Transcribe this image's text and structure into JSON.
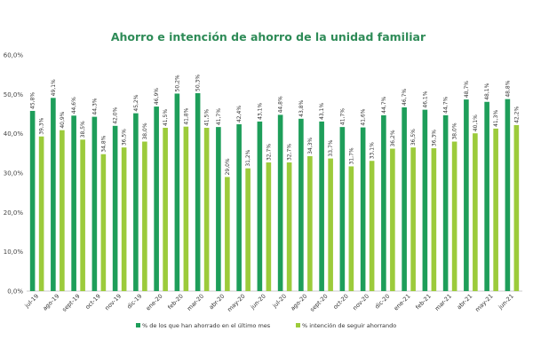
{
  "chart_data": {
    "type": "bar",
    "title": "Ahorro e intención de ahorro de la unidad familiar",
    "xlabel": "",
    "ylabel": "",
    "ylim": [
      0,
      60
    ],
    "yticks": [
      "0,0%",
      "10,0%",
      "20,0%",
      "30,0%",
      "40,0%",
      "50,0%",
      "60,0%"
    ],
    "legend_position": "bottom",
    "grid": false,
    "categories": [
      "jul-19",
      "ago-19",
      "sept-19",
      "oct-19",
      "nov-19",
      "dic-19",
      "ene-20",
      "feb-20",
      "mar-20",
      "abr-20",
      "may-20",
      "jun-20",
      "jul-20",
      "ago-20",
      "sept-20",
      "oct-20",
      "nov-20",
      "dic-20",
      "ene-21",
      "feb-21",
      "mar-21",
      "abr-21",
      "may-21",
      "jun-21"
    ],
    "series": [
      {
        "name": "% de los que han ahorrado en el último mes",
        "color": "#1e9e5a",
        "values": [
          45.8,
          49.1,
          44.6,
          44.3,
          42.0,
          45.2,
          46.9,
          50.2,
          50.3,
          41.7,
          42.4,
          43.1,
          44.8,
          43.8,
          43.1,
          41.7,
          41.6,
          44.7,
          46.7,
          46.1,
          44.7,
          48.7,
          48.1,
          48.8
        ],
        "labels": [
          "45,8%",
          "49,1%",
          "44,6%",
          "44,3%",
          "42,0%",
          "45,2%",
          "46,9%",
          "50,2%",
          "50,3%",
          "41,7%",
          "42,4%",
          "43,1%",
          "44,8%",
          "43,8%",
          "43,1%",
          "41,7%",
          "41,6%",
          "44,7%",
          "46,7%",
          "46,1%",
          "44,7%",
          "48,7%",
          "48,1%",
          "48,8%"
        ]
      },
      {
        "name": "% intención de seguir ahorrando",
        "color": "#9ccb3b",
        "values": [
          39.3,
          40.9,
          38.5,
          34.8,
          36.5,
          38.0,
          41.5,
          41.8,
          41.5,
          29.0,
          31.2,
          32.7,
          32.7,
          34.3,
          33.7,
          31.7,
          33.1,
          36.2,
          36.5,
          36.3,
          38.0,
          40.1,
          41.3,
          42.2
        ],
        "labels": [
          "39,3%",
          "40,9%",
          "38,5%",
          "34,8%",
          "36,5%",
          "38,0%",
          "41,5%",
          "41,8%",
          "41,5%",
          "29,0%",
          "31,2%",
          "32,7%",
          "32,7%",
          "34,3%",
          "33,7%",
          "31,7%",
          "33,1%",
          "36,2%",
          "36,5%",
          "36,3%",
          "38,0%",
          "40,1%",
          "41,3%",
          "42,2%"
        ]
      }
    ]
  }
}
